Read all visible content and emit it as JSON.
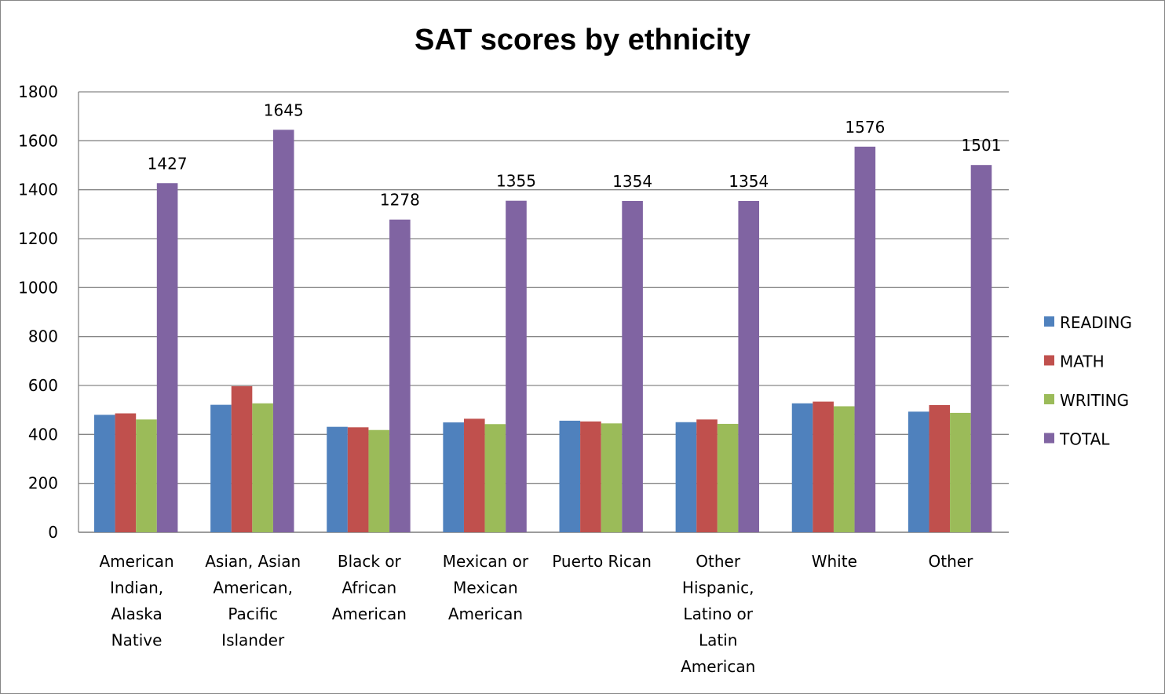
{
  "chart_data": {
    "type": "bar",
    "title": "SAT scores by ethnicity",
    "xlabel": "",
    "ylabel": "",
    "ylim": [
      0,
      1800
    ],
    "yticks": [
      0,
      200,
      400,
      600,
      800,
      1000,
      1200,
      1400,
      1600,
      1800
    ],
    "grid": true,
    "legend_position": "right",
    "categories": [
      [
        "American",
        "Indian,",
        "Alaska",
        "Native"
      ],
      [
        "Asian, Asian",
        "American,",
        "Pacific",
        "Islander"
      ],
      [
        "Black or",
        "African",
        "American"
      ],
      [
        "Mexican or",
        "Mexican",
        "American"
      ],
      [
        "Puerto Rican"
      ],
      [
        "Other",
        "Hispanic,",
        "Latino or",
        "Latin",
        "American"
      ],
      [
        "White"
      ],
      [
        "Other"
      ]
    ],
    "series": [
      {
        "name": "READING",
        "color": "#4F81BD",
        "values": [
          480,
          521,
          431,
          449,
          456,
          450,
          527,
          493
        ]
      },
      {
        "name": "MATH",
        "color": "#C0504D",
        "values": [
          486,
          597,
          429,
          464,
          453,
          461,
          534,
          520
        ]
      },
      {
        "name": "WRITING",
        "color": "#9BBB59",
        "values": [
          461,
          527,
          418,
          442,
          445,
          443,
          515,
          488
        ]
      },
      {
        "name": "TOTAL",
        "color": "#8064A2",
        "values": [
          1427,
          1645,
          1278,
          1355,
          1354,
          1354,
          1576,
          1501
        ],
        "data_labels": [
          "1427",
          "1645",
          "1278",
          "1355",
          "1354",
          "1354",
          "1576",
          "1501"
        ]
      }
    ]
  }
}
